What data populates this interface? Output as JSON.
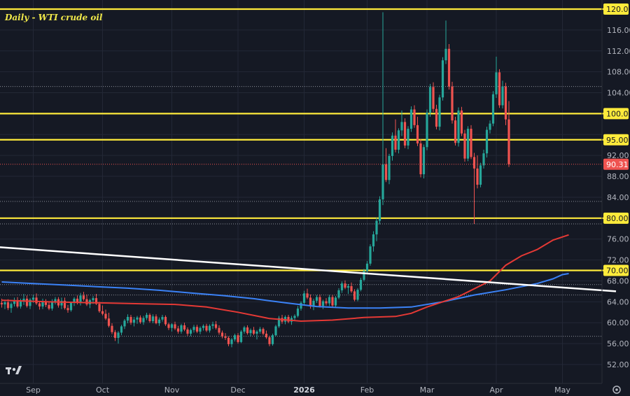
{
  "chart_data": {
    "type": "candlestick",
    "title": "Daily - WTI crude oil",
    "ylim": [
      48,
      122
    ],
    "y_ticks": [
      "52.00",
      "56.00",
      "60.00",
      "64.00",
      "68.00",
      "72.00",
      "76.00",
      "80.00",
      "84.00",
      "88.00",
      "92.00",
      "96.00",
      "100.00",
      "104.00",
      "108.00",
      "112.00",
      "116.00",
      "120.00"
    ],
    "x_ticks": [
      {
        "label": "Sep",
        "bold": false,
        "bar": 10
      },
      {
        "label": "Oct",
        "bold": false,
        "bar": 32
      },
      {
        "label": "Nov",
        "bold": false,
        "bar": 54
      },
      {
        "label": "Dec",
        "bold": false,
        "bar": 75
      },
      {
        "label": "2026",
        "bold": true,
        "bar": 96
      },
      {
        "label": "Feb",
        "bold": false,
        "bar": 116
      },
      {
        "label": "Mar",
        "bold": false,
        "bar": 135
      },
      {
        "label": "Apr",
        "bold": false,
        "bar": 157
      },
      {
        "label": "May",
        "bold": false,
        "bar": 178
      }
    ],
    "last_price": "90.31",
    "last_price_value": 90.31,
    "horizontal_levels": [
      {
        "value": 120,
        "label": "120.00"
      },
      {
        "value": 100,
        "label": "100.00"
      },
      {
        "value": 95,
        "label": "95.00"
      },
      {
        "value": 80,
        "label": "80.00"
      },
      {
        "value": 70,
        "label": "70.00"
      }
    ],
    "dotted_levels": [
      105.2,
      83.2,
      78.9,
      67.3,
      65.3,
      57.4
    ],
    "trendline": {
      "from": {
        "bar": -2,
        "value": 74.5
      },
      "to": {
        "bar": 195,
        "value": 66.0
      }
    },
    "candles": [
      [
        63.8,
        64.6,
        62.9,
        63.5
      ],
      [
        63.5,
        64.3,
        62.6,
        63.9
      ],
      [
        63.9,
        64.5,
        62.4,
        62.8
      ],
      [
        62.8,
        63.9,
        61.9,
        63.6
      ],
      [
        63.6,
        64.8,
        63.1,
        64.3
      ],
      [
        64.3,
        64.9,
        62.8,
        63.1
      ],
      [
        63.1,
        64.6,
        62.7,
        64.1
      ],
      [
        64.1,
        65.5,
        63.4,
        64.6
      ],
      [
        64.6,
        65.2,
        62.9,
        63.2
      ],
      [
        63.2,
        64.7,
        62.6,
        64.4
      ],
      [
        64.4,
        65.3,
        63.8,
        64.8
      ],
      [
        64.8,
        65.6,
        63.4,
        63.7
      ],
      [
        63.7,
        64.1,
        62.5,
        63.1
      ],
      [
        63.1,
        64.6,
        62.6,
        64.0
      ],
      [
        64.0,
        64.5,
        63.0,
        63.4
      ],
      [
        63.4,
        63.9,
        62.4,
        62.7
      ],
      [
        62.7,
        64.5,
        62.3,
        64.1
      ],
      [
        64.1,
        64.9,
        63.5,
        64.5
      ],
      [
        64.5,
        64.9,
        62.9,
        63.3
      ],
      [
        63.3,
        64.8,
        62.6,
        64.2
      ],
      [
        64.2,
        64.8,
        62.5,
        62.8
      ],
      [
        62.8,
        63.4,
        61.9,
        62.4
      ],
      [
        62.4,
        64.0,
        62.1,
        63.8
      ],
      [
        63.8,
        64.9,
        63.2,
        64.6
      ],
      [
        64.6,
        65.2,
        63.5,
        63.8
      ],
      [
        63.8,
        65.7,
        63.3,
        65.2
      ],
      [
        65.2,
        65.9,
        64.2,
        64.5
      ],
      [
        64.5,
        65.4,
        63.2,
        63.5
      ],
      [
        63.5,
        64.6,
        62.8,
        64.3
      ],
      [
        64.3,
        65.1,
        63.6,
        64.7
      ],
      [
        64.7,
        65.5,
        63.4,
        63.6
      ],
      [
        63.6,
        64.0,
        61.9,
        62.2
      ],
      [
        62.2,
        63.3,
        61.4,
        61.7
      ],
      [
        61.7,
        62.5,
        60.5,
        60.8
      ],
      [
        60.8,
        61.9,
        59.1,
        59.4
      ],
      [
        59.4,
        59.9,
        57.8,
        58.2
      ],
      [
        58.2,
        58.6,
        56.5,
        57.1
      ],
      [
        57.1,
        58.4,
        56.0,
        58.1
      ],
      [
        58.1,
        59.6,
        57.6,
        59.3
      ],
      [
        59.3,
        60.7,
        58.8,
        60.4
      ],
      [
        60.4,
        61.6,
        59.9,
        61.1
      ],
      [
        61.1,
        61.5,
        59.6,
        60.0
      ],
      [
        60.0,
        61.1,
        59.3,
        60.6
      ],
      [
        60.6,
        61.3,
        59.8,
        61.0
      ],
      [
        61.0,
        61.4,
        59.8,
        60.1
      ],
      [
        60.1,
        61.3,
        59.6,
        60.9
      ],
      [
        60.9,
        61.9,
        60.5,
        61.5
      ],
      [
        61.5,
        61.8,
        60.0,
        60.3
      ],
      [
        60.3,
        61.6,
        59.9,
        61.2
      ],
      [
        61.2,
        61.6,
        59.7,
        59.9
      ],
      [
        59.9,
        61.0,
        59.4,
        60.6
      ],
      [
        60.6,
        61.5,
        60.2,
        61.1
      ],
      [
        61.1,
        61.4,
        59.4,
        59.7
      ],
      [
        59.7,
        60.0,
        58.6,
        59.0
      ],
      [
        59.0,
        59.9,
        58.3,
        59.7
      ],
      [
        59.7,
        60.2,
        58.6,
        58.9
      ],
      [
        58.9,
        59.4,
        57.9,
        58.3
      ],
      [
        58.3,
        59.8,
        57.9,
        59.5
      ],
      [
        59.5,
        60.0,
        58.4,
        58.7
      ],
      [
        58.7,
        59.1,
        57.5,
        57.9
      ],
      [
        57.9,
        58.9,
        57.4,
        58.6
      ],
      [
        58.6,
        59.6,
        58.1,
        59.2
      ],
      [
        59.2,
        59.6,
        58.0,
        58.3
      ],
      [
        58.3,
        59.3,
        57.8,
        59.0
      ],
      [
        59.0,
        59.7,
        58.5,
        59.4
      ],
      [
        59.4,
        59.8,
        58.2,
        58.5
      ],
      [
        58.5,
        59.7,
        58.1,
        59.4
      ],
      [
        59.4,
        60.2,
        58.8,
        59.7
      ],
      [
        59.7,
        60.3,
        58.7,
        59.0
      ],
      [
        59.0,
        59.5,
        57.7,
        58.1
      ],
      [
        58.1,
        58.5,
        57.0,
        57.4
      ],
      [
        57.4,
        58.0,
        56.7,
        57.1
      ],
      [
        57.1,
        57.4,
        55.5,
        55.9
      ],
      [
        55.9,
        57.1,
        55.3,
        56.8
      ],
      [
        56.8,
        57.9,
        56.4,
        57.6
      ],
      [
        57.6,
        58.0,
        56.0,
        56.3
      ],
      [
        56.3,
        58.6,
        56.1,
        58.3
      ],
      [
        58.3,
        59.4,
        57.9,
        59.1
      ],
      [
        59.1,
        59.5,
        57.7,
        58.0
      ],
      [
        58.0,
        58.9,
        57.4,
        58.6
      ],
      [
        58.6,
        59.2,
        57.6,
        57.9
      ],
      [
        57.9,
        58.6,
        56.8,
        58.3
      ],
      [
        58.3,
        59.2,
        57.9,
        58.8
      ],
      [
        58.8,
        59.1,
        57.6,
        57.9
      ],
      [
        57.9,
        58.5,
        56.9,
        57.2
      ],
      [
        57.2,
        57.5,
        55.5,
        55.9
      ],
      [
        55.9,
        57.9,
        55.6,
        57.6
      ],
      [
        57.6,
        59.6,
        57.4,
        59.3
      ],
      [
        59.3,
        61.3,
        59.0,
        60.9
      ],
      [
        60.9,
        61.5,
        59.8,
        60.2
      ],
      [
        60.2,
        61.4,
        59.7,
        61.1
      ],
      [
        61.1,
        61.5,
        59.9,
        60.2
      ],
      [
        60.2,
        61.3,
        59.6,
        60.9
      ],
      [
        60.9,
        61.6,
        60.4,
        61.3
      ],
      [
        61.3,
        63.2,
        61.0,
        62.7
      ],
      [
        62.7,
        64.1,
        62.3,
        63.8
      ],
      [
        63.8,
        66.1,
        63.5,
        65.6
      ],
      [
        65.6,
        66.5,
        64.5,
        64.8
      ],
      [
        64.8,
        65.4,
        62.7,
        63.1
      ],
      [
        63.1,
        64.6,
        62.4,
        64.2
      ],
      [
        64.2,
        65.3,
        63.8,
        64.9
      ],
      [
        64.9,
        65.4,
        62.9,
        63.2
      ],
      [
        63.2,
        64.4,
        62.6,
        64.1
      ],
      [
        64.1,
        64.7,
        63.3,
        63.7
      ],
      [
        63.7,
        65.3,
        63.2,
        64.9
      ],
      [
        64.9,
        65.3,
        63.0,
        63.3
      ],
      [
        63.3,
        65.1,
        62.9,
        64.8
      ],
      [
        64.8,
        66.6,
        64.5,
        66.2
      ],
      [
        66.2,
        67.9,
        65.7,
        67.5
      ],
      [
        67.5,
        68.1,
        66.4,
        66.7
      ],
      [
        66.7,
        67.4,
        65.5,
        67.0
      ],
      [
        67.0,
        67.7,
        65.7,
        66.0
      ],
      [
        66.0,
        66.4,
        64.1,
        64.4
      ],
      [
        64.4,
        66.6,
        64.1,
        66.3
      ],
      [
        66.3,
        68.6,
        66.0,
        68.2
      ],
      [
        68.2,
        70.3,
        67.9,
        69.9
      ],
      [
        69.9,
        71.8,
        69.5,
        71.3
      ],
      [
        71.3,
        75.0,
        70.9,
        74.6
      ],
      [
        74.6,
        77.5,
        73.6,
        76.9
      ],
      [
        76.9,
        80.1,
        75.6,
        79.5
      ],
      [
        79.5,
        84.2,
        78.8,
        83.6
      ],
      [
        83.6,
        119.4,
        82.5,
        90.3
      ],
      [
        90.3,
        93.4,
        86.9,
        87.3
      ],
      [
        87.3,
        92.3,
        86.5,
        91.9
      ],
      [
        91.9,
        96.4,
        91.0,
        95.8
      ],
      [
        95.8,
        98.9,
        92.6,
        93.1
      ],
      [
        93.1,
        97.2,
        92.4,
        96.8
      ],
      [
        96.8,
        100.6,
        95.7,
        98.4
      ],
      [
        98.4,
        99.1,
        93.4,
        93.9
      ],
      [
        93.9,
        97.6,
        93.2,
        97.1
      ],
      [
        97.1,
        101.4,
        96.5,
        100.8
      ],
      [
        100.8,
        101.6,
        97.3,
        97.8
      ],
      [
        97.8,
        99.4,
        93.8,
        94.3
      ],
      [
        94.3,
        95.1,
        87.8,
        88.4
      ],
      [
        88.4,
        94.1,
        87.6,
        93.6
      ],
      [
        93.6,
        100.8,
        93.0,
        100.2
      ],
      [
        100.2,
        105.7,
        99.4,
        105.1
      ],
      [
        105.1,
        106.0,
        100.3,
        100.9
      ],
      [
        100.9,
        101.7,
        97.0,
        97.5
      ],
      [
        97.5,
        103.6,
        96.8,
        103.1
      ],
      [
        103.1,
        110.8,
        102.5,
        110.2
      ],
      [
        110.2,
        117.8,
        109.5,
        112.4
      ],
      [
        112.4,
        113.3,
        104.6,
        105.2
      ],
      [
        105.2,
        106.1,
        98.1,
        98.7
      ],
      [
        98.7,
        99.4,
        93.9,
        94.4
      ],
      [
        94.4,
        101.2,
        93.7,
        100.6
      ],
      [
        100.6,
        101.3,
        95.7,
        96.2
      ],
      [
        96.2,
        96.9,
        90.8,
        91.4
      ],
      [
        91.4,
        97.6,
        90.9,
        97.1
      ],
      [
        97.1,
        97.8,
        91.3,
        91.7
      ],
      [
        91.7,
        92.5,
        78.9,
        89.5
      ],
      [
        89.5,
        92.0,
        85.7,
        86.4
      ],
      [
        86.4,
        90.6,
        85.9,
        90.1
      ],
      [
        90.1,
        93.1,
        89.5,
        92.4
      ],
      [
        92.4,
        97.5,
        91.6,
        96.9
      ],
      [
        96.9,
        98.7,
        96.2,
        98.1
      ],
      [
        98.1,
        104.3,
        97.6,
        103.7
      ],
      [
        103.7,
        110.9,
        103.0,
        107.9
      ],
      [
        107.9,
        108.5,
        101.1,
        101.6
      ],
      [
        101.6,
        106.3,
        101.0,
        105.2
      ],
      [
        105.2,
        105.9,
        97.8,
        98.9
      ],
      [
        98.9,
        102.4,
        89.8,
        90.3
      ]
    ],
    "sma_200": {
      "start_bar": 0,
      "values": [
        [
          0,
          67.8
        ],
        [
          10,
          67.5
        ],
        [
          20,
          67.2
        ],
        [
          30,
          66.9
        ],
        [
          40,
          66.6
        ],
        [
          50,
          66.2
        ],
        [
          60,
          65.7
        ],
        [
          70,
          65.2
        ],
        [
          80,
          64.6
        ],
        [
          90,
          63.8
        ],
        [
          100,
          63.1
        ],
        [
          110,
          62.8
        ],
        [
          120,
          62.8
        ],
        [
          130,
          63.0
        ],
        [
          140,
          64.0
        ],
        [
          150,
          65.3
        ],
        [
          160,
          66.3
        ],
        [
          170,
          67.5
        ],
        [
          175,
          68.4
        ],
        [
          178,
          69.2
        ],
        [
          180,
          69.4
        ]
      ]
    },
    "sma_50": {
      "start_bar": 0,
      "values": [
        [
          0,
          64.3
        ],
        [
          15,
          64.0
        ],
        [
          30,
          63.8
        ],
        [
          45,
          63.6
        ],
        [
          55,
          63.5
        ],
        [
          65,
          63.0
        ],
        [
          75,
          62.0
        ],
        [
          85,
          60.8
        ],
        [
          95,
          60.3
        ],
        [
          105,
          60.5
        ],
        [
          115,
          61.0
        ],
        [
          125,
          61.2
        ],
        [
          130,
          61.8
        ],
        [
          135,
          63.0
        ],
        [
          145,
          65.0
        ],
        [
          155,
          68.0
        ],
        [
          160,
          71.0
        ],
        [
          165,
          72.8
        ],
        [
          170,
          74.0
        ],
        [
          175,
          75.8
        ],
        [
          180,
          76.8
        ]
      ]
    },
    "colors": {
      "up": "#26a69a",
      "down": "#ef5350",
      "sma_200": "#3b82f6",
      "sma_50": "#e53935",
      "trendline": "#ffffff",
      "level": "#ffeb3b",
      "background": "#151924",
      "grid": "#232836"
    }
  },
  "logo": "TV"
}
